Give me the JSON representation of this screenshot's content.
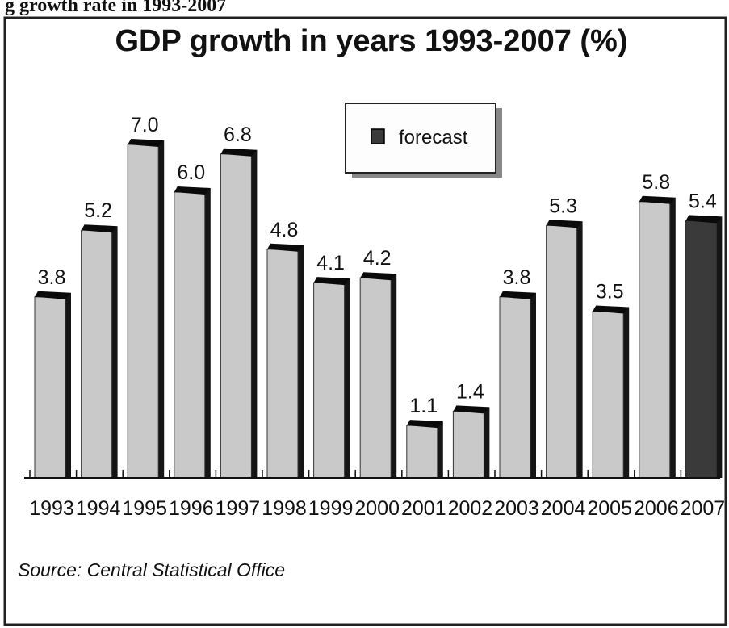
{
  "header_fragment": "g growth rate in 1993-2007",
  "chart_data": {
    "type": "bar",
    "title": "GDP growth in years 1993-2007 (%)",
    "xlabel": "",
    "ylabel": "",
    "ylim": [
      0,
      8
    ],
    "grid": false,
    "legend_placement": "top-center",
    "categories": [
      "1993",
      "1994",
      "1995",
      "1996",
      "1997",
      "1998",
      "1999",
      "2000",
      "2001",
      "2002",
      "2003",
      "2004",
      "2005",
      "2006",
      "2007"
    ],
    "values": [
      3.8,
      5.2,
      7.0,
      6.0,
      6.8,
      4.8,
      4.1,
      4.2,
      1.1,
      1.4,
      3.8,
      5.3,
      3.5,
      5.8,
      5.4
    ],
    "value_labels": [
      "3.8",
      "5.2",
      "7.0",
      "6.0",
      "6.8",
      "4.8",
      "4.1",
      "4.2",
      "1.1",
      "1.4",
      "3.8",
      "5.3",
      "3.5",
      "5.8",
      "5.4"
    ],
    "forecast_flags": [
      false,
      false,
      false,
      false,
      false,
      false,
      false,
      false,
      false,
      false,
      false,
      false,
      false,
      false,
      true
    ],
    "legend": [
      {
        "label": "forecast",
        "color": "#3a3a3a"
      }
    ],
    "source": "Source: Central Statistical Office",
    "colors": {
      "actual": "#c9c9c9",
      "forecast": "#3a3a3a",
      "bar_top": "#0a0a0a"
    }
  }
}
